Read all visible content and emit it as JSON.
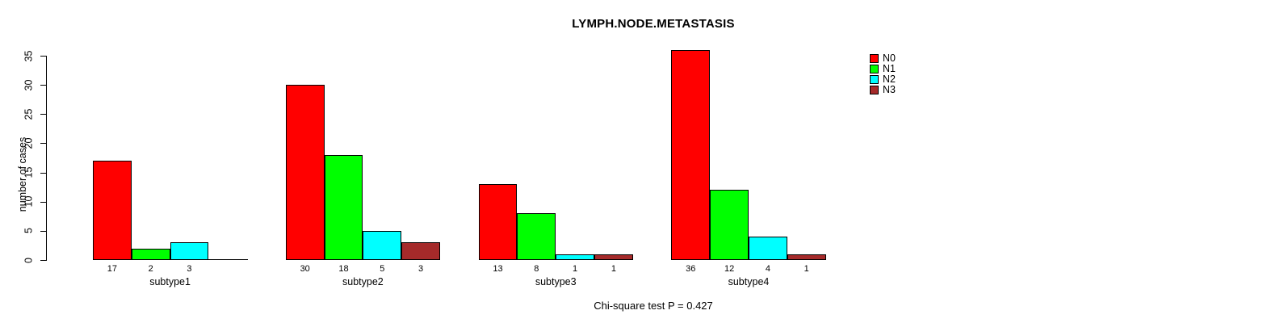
{
  "chart_data": {
    "type": "bar",
    "title": "LYMPH.NODE.METASTASIS",
    "ylabel": "number of cases",
    "xlabel": "",
    "footnote": "Chi-square test P = 0.427",
    "categories": [
      "subtype1",
      "subtype2",
      "subtype3",
      "subtype4"
    ],
    "series": [
      {
        "name": "N0",
        "color": "#FF0000",
        "values": [
          17,
          30,
          13,
          36
        ]
      },
      {
        "name": "N1",
        "color": "#00FF00",
        "values": [
          2,
          18,
          8,
          12
        ]
      },
      {
        "name": "N2",
        "color": "#00FFFF",
        "values": [
          3,
          5,
          1,
          4
        ]
      },
      {
        "name": "N3",
        "color": "#A52A2A",
        "values": [
          0,
          3,
          1,
          1
        ]
      }
    ],
    "bar_value_labels": {
      "subtype1": [
        "17",
        "2",
        "3",
        ""
      ],
      "subtype2": [
        "30",
        "18",
        "5",
        "3"
      ],
      "subtype3": [
        "13",
        "8",
        "1",
        "1"
      ],
      "subtype4": [
        "36",
        "12",
        "4",
        "1"
      ]
    },
    "ylim": [
      0,
      35
    ],
    "yticks": [
      0,
      5,
      10,
      15,
      20,
      25,
      30,
      35
    ],
    "grid": false,
    "legend_position": "top-right",
    "background_color": "#FFFFFF",
    "axis_color": "#000000"
  }
}
